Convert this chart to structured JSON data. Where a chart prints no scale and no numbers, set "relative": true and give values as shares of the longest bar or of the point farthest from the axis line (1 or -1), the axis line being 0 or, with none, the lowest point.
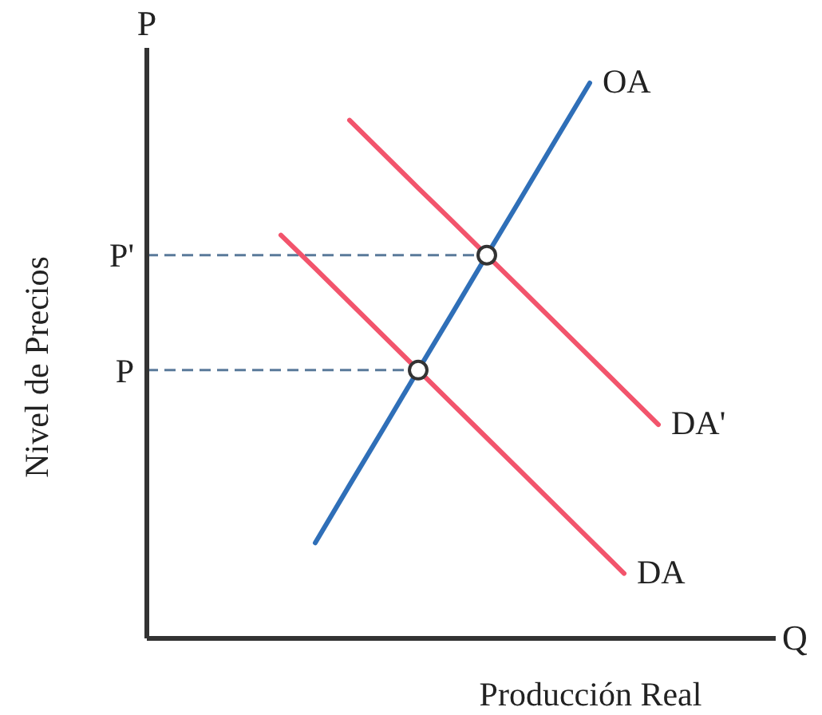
{
  "chart_data": {
    "type": "line",
    "xlabel": "Producción Real",
    "ylabel": "Nivel de Precios",
    "annotations": [
      "P",
      "Q"
    ],
    "relative": true,
    "categories": [
      null,
      null,
      null,
      null,
      null,
      null,
      null,
      null,
      null,
      null,
      null,
      null,
      null,
      null,
      null,
      null,
      null,
      null
    ],
    "series": [
      {
        "name": "OA",
        "color": "#2f6fb8",
        "values": [
          null,
          null,
          null,
          null,
          0.172,
          0.276,
          0.379,
          0.483,
          0.586,
          0.69,
          0.793,
          0.897,
          1,
          null,
          null,
          null,
          null,
          null
        ]
      },
      {
        "name": "DA",
        "color": "#f2546c",
        "values": [
          null,
          null,
          null,
          0.726,
          0.666,
          0.605,
          0.544,
          0.483,
          0.422,
          0.361,
          0.3,
          0.239,
          0.178,
          0.117,
          null,
          null,
          null,
          null
        ]
      },
      {
        "name": "DA'",
        "color": "#f2546c",
        "values": [
          null,
          null,
          null,
          null,
          null,
          0.933,
          0.872,
          0.811,
          0.751,
          0.69,
          0.629,
          0.568,
          0.507,
          0.446,
          0.385,
          null,
          null,
          null
        ]
      }
    ],
    "ref_lines": [
      {
        "axis": "y",
        "value": 0.483,
        "label": "P",
        "color": "#5a7a9a",
        "line_style": "dashed"
      },
      {
        "axis": "y",
        "value": 0.69,
        "label": "P'",
        "color": "#5a7a9a",
        "line_style": "dashed"
      }
    ],
    "marker": "none"
  }
}
